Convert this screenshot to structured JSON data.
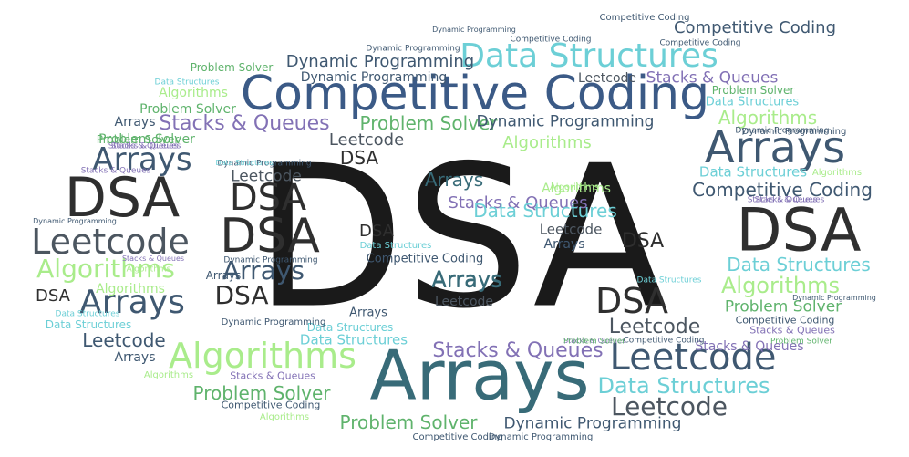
{
  "palette": {
    "black": "#1a1a1a",
    "dark": "#2f2f2f",
    "slate": "#3f5871",
    "blue": "#3b5a86",
    "teal": "#386b78",
    "gray": "#4c5660",
    "cyan": "#6ccfd6",
    "purple": "#8271b5",
    "green": "#5fb36c",
    "lightgreen": "#a9ec8b"
  },
  "words": [
    {
      "text": "DSA",
      "color": "black"
    },
    {
      "text": "Competitive Coding",
      "color": "blue"
    },
    {
      "text": "Arrays",
      "color": "teal"
    },
    {
      "text": "DSA",
      "color": "dark"
    },
    {
      "text": "Arrays",
      "color": "slate"
    },
    {
      "text": "DSA",
      "color": "dark"
    },
    {
      "text": "DSA",
      "color": "dark"
    },
    {
      "text": "DSA",
      "color": "dark"
    },
    {
      "text": "Leetcode",
      "color": "gray"
    },
    {
      "text": "Data Structures",
      "color": "cyan"
    },
    {
      "text": "Leetcode",
      "color": "slate"
    },
    {
      "text": "Algorithms",
      "color": "lightgreen"
    },
    {
      "text": "Arrays",
      "color": "slate"
    },
    {
      "text": "DSA",
      "color": "dark"
    },
    {
      "text": "Arrays",
      "color": "teal"
    },
    {
      "text": "Leetcode",
      "color": "gray"
    },
    {
      "text": "Arrays",
      "color": "slate"
    },
    {
      "text": "Algorithms",
      "color": "lightgreen"
    },
    {
      "text": "Competitive Coding",
      "color": "slate"
    },
    {
      "text": "Dynamic Programming",
      "color": "slate"
    },
    {
      "text": "Stacks & Queues",
      "color": "purple"
    },
    {
      "text": "Data Structures",
      "color": "cyan"
    },
    {
      "text": "Stacks & Queues",
      "color": "purple"
    },
    {
      "text": "Leetcode",
      "color": "gray"
    },
    {
      "text": "Problem Solver",
      "color": "green"
    },
    {
      "text": "Algorithms",
      "color": "lightgreen"
    },
    {
      "text": "Problem Solver",
      "color": "green"
    },
    {
      "text": "Arrays",
      "color": "teal"
    },
    {
      "text": "DSA",
      "color": "dark"
    },
    {
      "text": "Arrays",
      "color": "slate"
    },
    {
      "text": "Leetcode",
      "color": "gray"
    },
    {
      "text": "Data Structures",
      "color": "cyan"
    },
    {
      "text": "Algorithms",
      "color": "lightgreen"
    },
    {
      "text": "Leetcode",
      "color": "slate"
    },
    {
      "text": "Problem Solver",
      "color": "green"
    },
    {
      "text": "Competitive Coding",
      "color": "slate"
    },
    {
      "text": "Dynamic Programming",
      "color": "slate"
    },
    {
      "text": "Leetcode",
      "color": "gray"
    },
    {
      "text": "DSA",
      "color": "dark"
    },
    {
      "text": "Stacks & Queues",
      "color": "purple"
    },
    {
      "text": "Algorithms",
      "color": "lightgreen"
    },
    {
      "text": "Dynamic Programming",
      "color": "slate"
    },
    {
      "text": "Stacks & Queues",
      "color": "purple"
    },
    {
      "text": "Algorithms",
      "color": "lightgreen"
    },
    {
      "text": "Leetcode",
      "color": "gray"
    },
    {
      "text": "Leetcode",
      "color": "gray"
    },
    {
      "text": "DSA",
      "color": "dark"
    },
    {
      "text": "DSA",
      "color": "dark"
    },
    {
      "text": "Data Structures",
      "color": "cyan"
    },
    {
      "text": "Problem Solver",
      "color": "green"
    },
    {
      "text": "Leetcode",
      "color": "gray"
    },
    {
      "text": "Arrays",
      "color": "teal"
    },
    {
      "text": "Problem Solver",
      "color": "green"
    },
    {
      "text": "Problem Solver",
      "color": "green"
    },
    {
      "text": "Algorithms",
      "color": "lightgreen"
    },
    {
      "text": "Algorithms",
      "color": "lightgreen"
    },
    {
      "text": "Dynamic Programming",
      "color": "slate"
    },
    {
      "text": "Arrays",
      "color": "slate"
    },
    {
      "text": "Data Structures",
      "color": "cyan"
    },
    {
      "text": "Competitive Coding",
      "color": "slate"
    },
    {
      "text": "Arrays",
      "color": "slate"
    },
    {
      "text": "Arrays",
      "color": "slate"
    },
    {
      "text": "Arrays",
      "color": "slate"
    },
    {
      "text": "Arrays",
      "color": "slate"
    },
    {
      "text": "DSA",
      "color": "dark"
    },
    {
      "text": "Stacks & Queues",
      "color": "purple"
    },
    {
      "text": "Data Structures",
      "color": "cyan"
    },
    {
      "text": "Data Structures",
      "color": "cyan"
    },
    {
      "text": "Data Structures",
      "color": "cyan"
    },
    {
      "text": "Data Structures",
      "color": "cyan"
    },
    {
      "text": "Dynamic Programming",
      "color": "slate"
    },
    {
      "text": "Dynamic Programming",
      "color": "slate"
    },
    {
      "text": "Competitive Coding",
      "color": "slate"
    },
    {
      "text": "Competitive Coding",
      "color": "slate"
    },
    {
      "text": "Competitive Coding",
      "color": "slate"
    },
    {
      "text": "Competitive Coding",
      "color": "slate"
    },
    {
      "text": "Competitive Coding",
      "color": "slate"
    },
    {
      "text": "Competitive Coding",
      "color": "slate"
    },
    {
      "text": "Competitive Coding",
      "color": "slate"
    },
    {
      "text": "Dynamic Programming",
      "color": "slate"
    },
    {
      "text": "Dynamic Programming",
      "color": "slate"
    },
    {
      "text": "Dynamic Programming",
      "color": "slate"
    },
    {
      "text": "Dynamic Programming",
      "color": "slate"
    },
    {
      "text": "Dynamic Programming",
      "color": "slate"
    },
    {
      "text": "Dynamic Programming",
      "color": "slate"
    },
    {
      "text": "Dynamic Programming",
      "color": "slate"
    },
    {
      "text": "Dynamic Programming",
      "color": "slate"
    },
    {
      "text": "Stacks & Queues",
      "color": "purple"
    },
    {
      "text": "Stacks & Queues",
      "color": "purple"
    },
    {
      "text": "Stacks & Queues",
      "color": "purple"
    },
    {
      "text": "Stacks & Queues",
      "color": "purple"
    },
    {
      "text": "Stacks & Queues",
      "color": "purple"
    },
    {
      "text": "Stacks & Queues",
      "color": "purple"
    },
    {
      "text": "Stacks & Queues",
      "color": "purple"
    },
    {
      "text": "Data Structures",
      "color": "cyan"
    },
    {
      "text": "Data Structures",
      "color": "cyan"
    },
    {
      "text": "Data Structures",
      "color": "cyan"
    },
    {
      "text": "Data Structures",
      "color": "cyan"
    },
    {
      "text": "Data Structures",
      "color": "cyan"
    },
    {
      "text": "Algorithms",
      "color": "lightgreen"
    },
    {
      "text": "Algorithms",
      "color": "lightgreen"
    },
    {
      "text": "Algorithms",
      "color": "lightgreen"
    },
    {
      "text": "Algorithms",
      "color": "lightgreen"
    },
    {
      "text": "Algorithms",
      "color": "lightgreen"
    },
    {
      "text": "Problem Solver",
      "color": "green"
    },
    {
      "text": "Problem Solver",
      "color": "green"
    },
    {
      "text": "Problem Solver",
      "color": "green"
    },
    {
      "text": "Problem Solver",
      "color": "green"
    },
    {
      "text": "Problem Solver",
      "color": "green"
    },
    {
      "text": "Stacks & Queues",
      "color": "purple"
    },
    {
      "text": "Stacks & Queues",
      "color": "purple"
    }
  ]
}
